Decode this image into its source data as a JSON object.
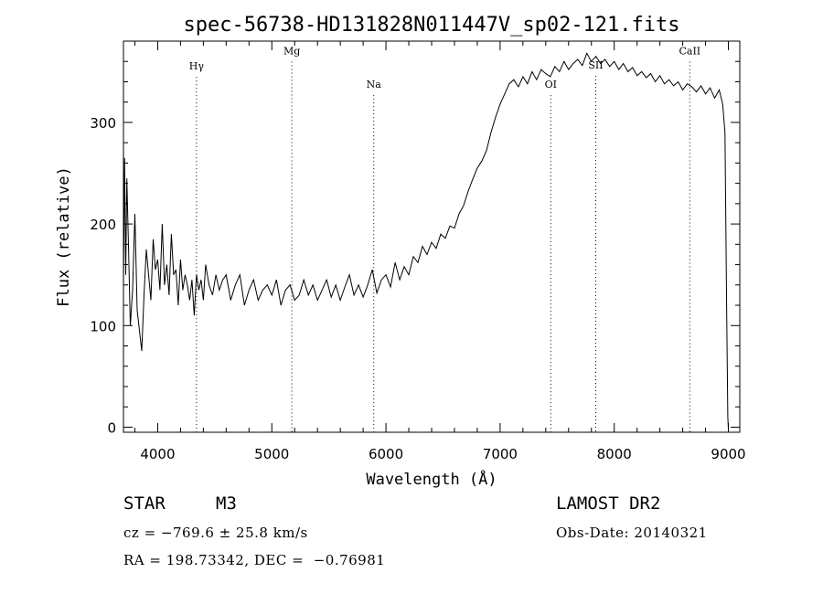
{
  "chart_data": {
    "type": "line",
    "title": "spec-56738-HD131828N011447V_sp02-121.fits",
    "xlabel": "Wavelength (Å)",
    "ylabel": "Flux (relative)",
    "xlim": [
      3700,
      9100
    ],
    "ylim": [
      -5,
      380
    ],
    "xticks": [
      4000,
      5000,
      6000,
      7000,
      8000,
      9000
    ],
    "yticks": [
      0,
      100,
      200,
      300
    ],
    "grid": false,
    "legend": "none",
    "lines": [
      {
        "label": "Hγ",
        "x": 4340,
        "label_y": 352
      },
      {
        "label": "Mg",
        "x": 5175,
        "label_y": 367
      },
      {
        "label": "Na",
        "x": 5893,
        "label_y": 334
      },
      {
        "label": "OI",
        "x": 7444,
        "label_y": 334
      },
      {
        "label": "SII",
        "x": 7838,
        "label_y": 353
      },
      {
        "label": "CaII",
        "x": 8662,
        "label_y": 367
      }
    ],
    "spectrum": {
      "x": [
        3700,
        3710,
        3720,
        3730,
        3745,
        3760,
        3780,
        3800,
        3820,
        3840,
        3860,
        3880,
        3900,
        3920,
        3940,
        3960,
        3980,
        4000,
        4020,
        4040,
        4060,
        4080,
        4100,
        4120,
        4140,
        4160,
        4180,
        4200,
        4220,
        4240,
        4260,
        4280,
        4300,
        4320,
        4340,
        4360,
        4380,
        4400,
        4420,
        4450,
        4480,
        4510,
        4540,
        4570,
        4600,
        4640,
        4680,
        4720,
        4760,
        4800,
        4840,
        4880,
        4920,
        4960,
        5000,
        5040,
        5080,
        5120,
        5160,
        5200,
        5240,
        5280,
        5320,
        5360,
        5400,
        5440,
        5480,
        5520,
        5560,
        5600,
        5640,
        5680,
        5720,
        5760,
        5800,
        5840,
        5880,
        5920,
        5960,
        6000,
        6040,
        6080,
        6120,
        6160,
        6200,
        6240,
        6280,
        6320,
        6360,
        6400,
        6440,
        6480,
        6520,
        6560,
        6600,
        6640,
        6680,
        6720,
        6760,
        6800,
        6840,
        6880,
        6920,
        6960,
        7000,
        7040,
        7080,
        7120,
        7160,
        7200,
        7240,
        7280,
        7320,
        7360,
        7400,
        7440,
        7480,
        7520,
        7560,
        7600,
        7640,
        7680,
        7720,
        7760,
        7800,
        7840,
        7880,
        7920,
        7960,
        8000,
        8040,
        8080,
        8120,
        8160,
        8200,
        8240,
        8280,
        8320,
        8360,
        8400,
        8440,
        8480,
        8520,
        8560,
        8600,
        8640,
        8680,
        8720,
        8760,
        8800,
        8840,
        8880,
        8920,
        8950,
        8970,
        8985,
        8995,
        9000
      ],
      "y": [
        140,
        265,
        150,
        245,
        175,
        100,
        135,
        210,
        115,
        95,
        75,
        130,
        175,
        150,
        125,
        185,
        155,
        165,
        135,
        200,
        140,
        160,
        130,
        190,
        150,
        155,
        120,
        165,
        135,
        150,
        140,
        125,
        145,
        110,
        150,
        135,
        145,
        125,
        160,
        140,
        130,
        150,
        135,
        145,
        150,
        125,
        140,
        150,
        120,
        135,
        145,
        125,
        135,
        140,
        130,
        145,
        120,
        135,
        140,
        125,
        130,
        145,
        130,
        140,
        125,
        135,
        145,
        128,
        140,
        125,
        138,
        150,
        130,
        140,
        128,
        140,
        155,
        132,
        145,
        150,
        138,
        162,
        145,
        158,
        150,
        168,
        162,
        178,
        170,
        182,
        176,
        190,
        186,
        198,
        196,
        210,
        218,
        232,
        244,
        255,
        262,
        272,
        290,
        305,
        318,
        328,
        338,
        342,
        335,
        345,
        338,
        350,
        342,
        352,
        348,
        345,
        355,
        350,
        360,
        352,
        358,
        362,
        356,
        368,
        360,
        365,
        358,
        362,
        355,
        360,
        352,
        358,
        350,
        354,
        346,
        350,
        344,
        348,
        340,
        346,
        338,
        342,
        336,
        340,
        332,
        338,
        335,
        330,
        336,
        328,
        334,
        324,
        332,
        318,
        290,
        120,
        10,
        -2
      ]
    }
  },
  "info": {
    "object_type": "STAR",
    "subclass": "M3",
    "survey": "LAMOST DR2",
    "cz": "cz = −769.6 ± 25.8 km/s",
    "obs_date": "Obs-Date: 20140321",
    "radec": "RA = 198.73342, DEC =  −0.76981"
  }
}
